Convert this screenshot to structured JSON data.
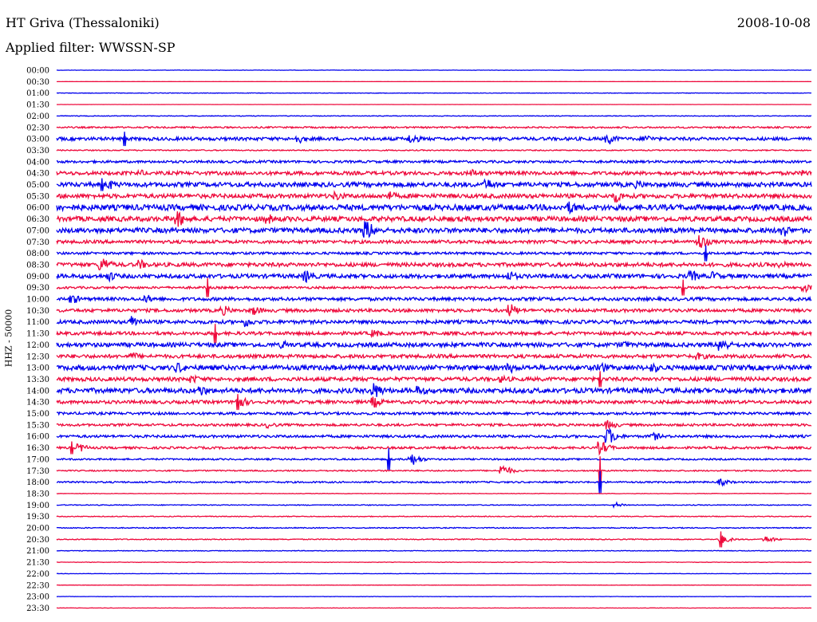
{
  "header": {
    "station": "HT Griva (Thessaloniki)",
    "date": "2008-10-08",
    "filter": "Applied filter: WWSSN-SP"
  },
  "colors": {
    "trace_a": "#0000ee",
    "trace_b": "#ee0a3c",
    "text": "#000000",
    "background": "#ffffff"
  },
  "chart_data": {
    "type": "line",
    "title": "HT Griva (Thessaloniki)",
    "subtitle": "Applied filter: WWSSN-SP",
    "date": "2008-10-08",
    "ylabel": "HHZ - 50000",
    "xlabel": "",
    "row_interval_minutes": 30,
    "grid": false,
    "legend": "none",
    "row_labels": [
      "00:00",
      "00:30",
      "01:00",
      "01:30",
      "02:00",
      "02:30",
      "03:00",
      "03:30",
      "04:00",
      "04:30",
      "05:00",
      "05:30",
      "06:00",
      "06:30",
      "07:00",
      "07:30",
      "08:00",
      "08:30",
      "09:00",
      "09:30",
      "10:00",
      "10:30",
      "11:00",
      "11:30",
      "12:00",
      "12:30",
      "13:00",
      "13:30",
      "14:00",
      "14:30",
      "15:00",
      "15:30",
      "16:00",
      "16:30",
      "17:00",
      "17:30",
      "18:00",
      "18:30",
      "19:00",
      "19:30",
      "20:00",
      "20:30",
      "21:00",
      "21:30",
      "22:00",
      "22:30",
      "23:00",
      "23:30"
    ],
    "noise_level": [
      0.2,
      0.1,
      0.3,
      0.1,
      0.4,
      1.0,
      2.0,
      0.7,
      1.5,
      2.2,
      2.8,
      2.6,
      3.5,
      3.0,
      3.0,
      2.0,
      1.5,
      2.4,
      2.5,
      1.4,
      2.0,
      2.0,
      2.2,
      2.0,
      2.6,
      2.2,
      3.0,
      2.4,
      3.0,
      2.0,
      1.6,
      1.5,
      1.6,
      1.4,
      1.0,
      0.8,
      1.0,
      0.3,
      0.5,
      0.5,
      0.6,
      0.6,
      0.4,
      0.3,
      0.2,
      0.2,
      0.2,
      0.2
    ],
    "events": [
      {
        "row": 6,
        "t": 0.32,
        "amp": 5
      },
      {
        "row": 6,
        "t": 0.47,
        "amp": 6
      },
      {
        "row": 6,
        "t": 0.73,
        "amp": 7
      },
      {
        "row": 6,
        "t": 0.78,
        "amp": 5
      },
      {
        "row": 9,
        "t": 0.11,
        "amp": 4
      },
      {
        "row": 9,
        "t": 0.55,
        "amp": 5
      },
      {
        "row": 9,
        "t": 0.99,
        "amp": 4
      },
      {
        "row": 10,
        "t": 0.07,
        "amp": 6
      },
      {
        "row": 10,
        "t": 0.57,
        "amp": 7
      },
      {
        "row": 10,
        "t": 0.77,
        "amp": 5
      },
      {
        "row": 11,
        "t": 0.37,
        "amp": 6
      },
      {
        "row": 11,
        "t": 0.44,
        "amp": 6
      },
      {
        "row": 11,
        "t": 0.74,
        "amp": 8
      },
      {
        "row": 12,
        "t": 0.0,
        "amp": 6
      },
      {
        "row": 12,
        "t": 0.68,
        "amp": 8
      },
      {
        "row": 13,
        "t": 0.16,
        "amp": 10
      },
      {
        "row": 13,
        "t": 0.28,
        "amp": 6
      },
      {
        "row": 14,
        "t": 0.41,
        "amp": 12
      },
      {
        "row": 14,
        "t": 0.96,
        "amp": 9
      },
      {
        "row": 15,
        "t": 0.85,
        "amp": 10
      },
      {
        "row": 17,
        "t": 0.06,
        "amp": 9
      },
      {
        "row": 17,
        "t": 0.11,
        "amp": 6
      },
      {
        "row": 17,
        "t": 0.96,
        "amp": 4
      },
      {
        "row": 18,
        "t": 0.07,
        "amp": 6
      },
      {
        "row": 18,
        "t": 0.33,
        "amp": 8
      },
      {
        "row": 18,
        "t": 0.6,
        "amp": 6
      },
      {
        "row": 18,
        "t": 0.84,
        "amp": 7
      },
      {
        "row": 18,
        "t": 0.87,
        "amp": 6
      },
      {
        "row": 19,
        "t": 0.99,
        "amp": 5
      },
      {
        "row": 20,
        "t": 0.02,
        "amp": 6
      },
      {
        "row": 20,
        "t": 0.12,
        "amp": 5
      },
      {
        "row": 21,
        "t": 0.22,
        "amp": 6
      },
      {
        "row": 21,
        "t": 0.26,
        "amp": 6
      },
      {
        "row": 21,
        "t": 0.6,
        "amp": 8
      },
      {
        "row": 22,
        "t": 0.1,
        "amp": 8
      },
      {
        "row": 22,
        "t": 0.25,
        "amp": 6
      },
      {
        "row": 23,
        "t": 0.42,
        "amp": 5
      },
      {
        "row": 24,
        "t": 0.3,
        "amp": 5
      },
      {
        "row": 24,
        "t": 0.75,
        "amp": 5
      },
      {
        "row": 24,
        "t": 0.88,
        "amp": 9
      },
      {
        "row": 25,
        "t": 0.1,
        "amp": 5
      },
      {
        "row": 25,
        "t": 0.85,
        "amp": 5
      },
      {
        "row": 26,
        "t": 0.16,
        "amp": 7
      },
      {
        "row": 26,
        "t": 0.6,
        "amp": 6
      },
      {
        "row": 26,
        "t": 0.72,
        "amp": 7
      },
      {
        "row": 26,
        "t": 0.79,
        "amp": 6
      },
      {
        "row": 27,
        "t": 0.18,
        "amp": 5
      },
      {
        "row": 27,
        "t": 0.59,
        "amp": 5
      },
      {
        "row": 28,
        "t": 0.19,
        "amp": 7
      },
      {
        "row": 28,
        "t": 0.42,
        "amp": 10
      },
      {
        "row": 28,
        "t": 0.48,
        "amp": 6
      },
      {
        "row": 29,
        "t": 0.24,
        "amp": 8
      },
      {
        "row": 29,
        "t": 0.42,
        "amp": 7
      },
      {
        "row": 31,
        "t": 0.28,
        "amp": 4
      },
      {
        "row": 31,
        "t": 0.73,
        "amp": 6
      },
      {
        "row": 32,
        "t": 0.73,
        "amp": 10
      },
      {
        "row": 32,
        "t": 0.79,
        "amp": 5
      },
      {
        "row": 33,
        "t": 0.72,
        "amp": 8
      },
      {
        "row": 33,
        "t": 0.03,
        "amp": 5
      },
      {
        "row": 34,
        "t": 0.47,
        "amp": 7
      },
      {
        "row": 35,
        "t": 0.59,
        "amp": 7
      },
      {
        "row": 36,
        "t": 0.88,
        "amp": 4
      },
      {
        "row": 38,
        "t": 0.74,
        "amp": 3
      },
      {
        "row": 41,
        "t": 0.88,
        "amp": 5
      },
      {
        "row": 41,
        "t": 0.94,
        "amp": 4
      }
    ],
    "spikes": [
      {
        "row": 6,
        "t": 0.09,
        "amp": 9
      },
      {
        "row": 10,
        "t": 0.06,
        "amp": 8
      },
      {
        "row": 16,
        "t": 0.86,
        "amp": 10
      },
      {
        "row": 19,
        "t": 0.2,
        "amp": 12
      },
      {
        "row": 19,
        "t": 0.83,
        "amp": 10
      },
      {
        "row": 23,
        "t": 0.21,
        "amp": 12
      },
      {
        "row": 27,
        "t": 0.72,
        "amp": 10
      },
      {
        "row": 29,
        "t": 0.24,
        "amp": 10
      },
      {
        "row": 33,
        "t": 0.02,
        "amp": 8
      },
      {
        "row": 34,
        "t": 0.44,
        "amp": 14
      },
      {
        "row": 35,
        "t": 0.72,
        "amp": 18
      },
      {
        "row": 36,
        "t": 0.72,
        "amp": 14
      },
      {
        "row": 41,
        "t": 0.88,
        "amp": 10
      }
    ]
  }
}
